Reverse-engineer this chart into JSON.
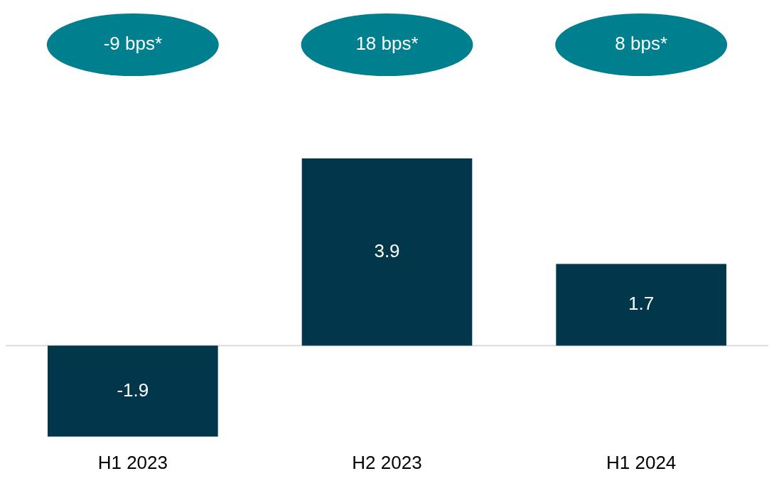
{
  "chart_data": {
    "type": "bar",
    "categories": [
      "H1 2023",
      "H2 2023",
      "H1 2024"
    ],
    "values": [
      -1.9,
      3.9,
      1.7
    ],
    "color": "#02364a",
    "ylim": [
      -1.9,
      3.9
    ],
    "tick_labels": "x",
    "grid": false,
    "legend": false,
    "data_labels": true,
    "ref_lines": [
      {
        "axis": "y",
        "value": 0,
        "color": "#d9d9d9"
      }
    ],
    "annotations": [
      "-9 bps*",
      "18 bps*",
      "8 bps*"
    ]
  }
}
